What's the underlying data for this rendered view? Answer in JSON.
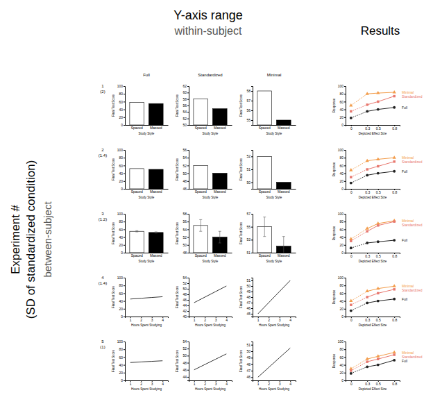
{
  "title": "Y-axis range",
  "subtitle": "within-subject",
  "results_title": "Results",
  "side_label": [
    "Experiment #",
    "(SD of standardized condition)",
    "between-subject"
  ],
  "column_headers": [
    "Full",
    "Standardized",
    "Minimal"
  ],
  "rows": [
    {
      "label": "1",
      "sd": "(2)"
    },
    {
      "label": "2",
      "sd": "(1.4)"
    },
    {
      "label": "3",
      "sd": "(1.2)"
    },
    {
      "label": "4",
      "sd": "(1.4)"
    },
    {
      "label": "5",
      "sd": "(1)"
    }
  ],
  "chart_data": [
    {
      "type": "bar",
      "xlabel": "Study Style",
      "ylabel": "Final Test Score",
      "categories": [
        "Spaced",
        "Massed"
      ],
      "values": [
        58,
        55
      ],
      "colors": [
        "#ffffff",
        "#000000"
      ],
      "ylim": [
        0,
        100
      ],
      "yticks": [
        0,
        20,
        40,
        60,
        80,
        100
      ]
    },
    {
      "type": "bar",
      "xlabel": "Study Style",
      "ylabel": "Final Test Score",
      "categories": [
        "Spaced",
        "Massed"
      ],
      "values": [
        58,
        55
      ],
      "colors": [
        "#ffffff",
        "#000000"
      ],
      "ylim": [
        50,
        62
      ],
      "yticks": [
        50,
        52,
        54,
        56,
        58,
        60,
        62
      ]
    },
    {
      "type": "bar",
      "xlabel": "Study Style",
      "ylabel": "Final Test Score",
      "categories": [
        "Spaced",
        "Massed"
      ],
      "values": [
        58,
        55
      ],
      "colors": [
        "#ffffff",
        "#000000"
      ],
      "ylim": [
        54.5,
        58.5
      ],
      "yticks": [
        55,
        56,
        57,
        58
      ]
    },
    {
      "type": "line",
      "xlabel": "Depicted Effect Size",
      "ylabel": "Response",
      "x": [
        0,
        0.3,
        0.5,
        0.8
      ],
      "xlim": [
        -0.1,
        0.9
      ],
      "xticks": [
        0,
        0.3,
        0.5,
        0.8
      ],
      "ylim": [
        0,
        100
      ],
      "yticks": [
        0,
        20,
        40,
        60,
        80,
        100
      ],
      "series": [
        {
          "name": "Minimal",
          "color": "#f39c4a",
          "marker": "triangle",
          "values": [
            50,
            80,
            82,
            84
          ]
        },
        {
          "name": "Standardized",
          "color": "#e8786f",
          "marker": "square",
          "values": [
            35,
            52,
            60,
            74
          ]
        },
        {
          "name": "Full",
          "color": "#222222",
          "marker": "circle",
          "values": [
            18,
            35,
            40,
            45
          ]
        }
      ]
    },
    {
      "type": "bar",
      "xlabel": "Study Style",
      "ylabel": "Final Test Score",
      "categories": [
        "Spaced",
        "Massed"
      ],
      "values": [
        52,
        50
      ],
      "colors": [
        "#ffffff",
        "#000000"
      ],
      "ylim": [
        0,
        100
      ],
      "yticks": [
        0,
        20,
        40,
        60,
        80,
        100
      ]
    },
    {
      "type": "bar",
      "xlabel": "Study Style",
      "ylabel": "Final Test Score",
      "categories": [
        "Spaced",
        "Massed"
      ],
      "values": [
        52,
        50
      ],
      "colors": [
        "#ffffff",
        "#000000"
      ],
      "ylim": [
        46,
        56
      ],
      "yticks": [
        46,
        48,
        50,
        52,
        54,
        56
      ]
    },
    {
      "type": "bar",
      "xlabel": "Study Style",
      "ylabel": "Final Test Score",
      "categories": [
        "Spaced",
        "Massed"
      ],
      "values": [
        52,
        50
      ],
      "colors": [
        "#ffffff",
        "#000000"
      ],
      "ylim": [
        49.5,
        52.5
      ],
      "yticks": [
        50,
        51,
        52
      ]
    },
    {
      "type": "line",
      "xlabel": "Depicted Effect Size",
      "ylabel": "Response",
      "x": [
        0,
        0.3,
        0.5,
        0.8
      ],
      "xlim": [
        -0.1,
        0.9
      ],
      "xticks": [
        0,
        0.3,
        0.5,
        0.8
      ],
      "ylim": [
        0,
        100
      ],
      "yticks": [
        0,
        20,
        40,
        60,
        80,
        100
      ],
      "series": [
        {
          "name": "Minimal",
          "color": "#f39c4a",
          "marker": "triangle",
          "values": [
            48,
            72,
            76,
            80
          ]
        },
        {
          "name": "Standardized",
          "color": "#e8786f",
          "marker": "square",
          "values": [
            30,
            50,
            58,
            70
          ]
        },
        {
          "name": "Full",
          "color": "#222222",
          "marker": "circle",
          "values": [
            15,
            35,
            40,
            45
          ]
        }
      ]
    },
    {
      "type": "bar",
      "xlabel": "Study Style",
      "ylabel": "Final Test Score",
      "categories": [
        "Spaced",
        "Massed"
      ],
      "values": [
        55,
        52
      ],
      "errors": [
        1.5,
        1.5
      ],
      "colors": [
        "#ffffff",
        "#000000"
      ],
      "ylim": [
        0,
        100
      ],
      "yticks": [
        0,
        20,
        40,
        60,
        80,
        100
      ]
    },
    {
      "type": "bar",
      "xlabel": "Study Style",
      "ylabel": "Final Test Score",
      "categories": [
        "Spaced",
        "Massed"
      ],
      "values": [
        55,
        52
      ],
      "errors": [
        1.5,
        1.5
      ],
      "colors": [
        "#ffffff",
        "#000000"
      ],
      "ylim": [
        48,
        58
      ],
      "yticks": [
        48,
        50,
        52,
        54,
        56,
        58
      ]
    },
    {
      "type": "bar",
      "xlabel": "Study Style",
      "ylabel": "Final Test Score",
      "categories": [
        "Spaced",
        "Massed"
      ],
      "values": [
        55,
        52
      ],
      "errors": [
        1.5,
        1.5
      ],
      "colors": [
        "#ffffff",
        "#000000"
      ],
      "ylim": [
        51,
        57
      ],
      "yticks": [
        51,
        53,
        55,
        57
      ]
    },
    {
      "type": "line",
      "xlabel": "Depicted Effect Size",
      "ylabel": "Response",
      "x": [
        0,
        0.3,
        0.5,
        0.8
      ],
      "xlim": [
        -0.1,
        0.9
      ],
      "xticks": [
        0,
        0.3,
        0.5,
        0.8
      ],
      "ylim": [
        0,
        100
      ],
      "yticks": [
        0,
        20,
        40,
        60,
        80,
        100
      ],
      "series": [
        {
          "name": "Minimal",
          "color": "#f39c4a",
          "marker": "triangle",
          "values": [
            35,
            62,
            75,
            82
          ]
        },
        {
          "name": "Standardized",
          "color": "#e8786f",
          "marker": "square",
          "values": [
            30,
            55,
            70,
            80
          ]
        },
        {
          "name": "Full",
          "color": "#222222",
          "marker": "circle",
          "values": [
            12,
            25,
            28,
            32
          ]
        }
      ]
    },
    {
      "type": "line",
      "xlabel": "Hours Spent Studying",
      "ylabel": "Final Test Score",
      "x": [
        1,
        2,
        3,
        4
      ],
      "values": [
        45,
        47,
        49,
        51
      ],
      "color": "#000000",
      "xlim": [
        0.5,
        4.5
      ],
      "xticks": [
        1,
        2,
        3,
        4
      ],
      "ylim": [
        0,
        100
      ],
      "yticks": [
        0,
        20,
        40,
        60,
        80,
        100
      ]
    },
    {
      "type": "line",
      "xlabel": "Hours Spent Studying",
      "ylabel": "Final Test Score",
      "x": [
        1,
        2,
        3,
        4
      ],
      "values": [
        45,
        47,
        49,
        51
      ],
      "color": "#000000",
      "xlim": [
        0.5,
        4.5
      ],
      "xticks": [
        1,
        2,
        3,
        4
      ],
      "ylim": [
        40,
        54
      ],
      "yticks": [
        40,
        42,
        44,
        46,
        48,
        50,
        52,
        54
      ]
    },
    {
      "type": "line",
      "xlabel": "Hours Spent Studying",
      "ylabel": "Final Test Score",
      "x": [
        1,
        2,
        3,
        4
      ],
      "values": [
        45,
        47,
        49,
        51
      ],
      "color": "#000000",
      "xlim": [
        0.5,
        4.5
      ],
      "xticks": [
        1,
        2,
        3,
        4
      ],
      "ylim": [
        44.5,
        51.5
      ],
      "yticks": [
        45,
        46,
        47,
        48,
        49,
        50,
        51
      ]
    },
    {
      "type": "line",
      "xlabel": "Depicted Effect Size",
      "ylabel": "Response",
      "x": [
        0,
        0.3,
        0.5,
        0.8
      ],
      "xlim": [
        -0.1,
        0.9
      ],
      "xticks": [
        0,
        0.3,
        0.5,
        0.8
      ],
      "ylim": [
        0,
        100
      ],
      "yticks": [
        0,
        20,
        40,
        60,
        80,
        100
      ],
      "series": [
        {
          "name": "Minimal",
          "color": "#f39c4a",
          "marker": "triangle",
          "values": [
            40,
            65,
            72,
            78
          ]
        },
        {
          "name": "Standardized",
          "color": "#e8786f",
          "marker": "square",
          "values": [
            30,
            50,
            60,
            70
          ]
        },
        {
          "name": "Full",
          "color": "#222222",
          "marker": "circle",
          "values": [
            15,
            35,
            40,
            45
          ]
        }
      ]
    },
    {
      "type": "line",
      "xlabel": "Hours Spent Studying",
      "ylabel": "Final Test Score",
      "x": [
        1,
        2,
        3,
        4
      ],
      "values": [
        46,
        47.5,
        49,
        50.5
      ],
      "color": "#000000",
      "xlim": [
        0.5,
        4.5
      ],
      "xticks": [
        1,
        2,
        3,
        4
      ],
      "ylim": [
        0,
        100
      ],
      "yticks": [
        0,
        20,
        40,
        60,
        80,
        100
      ]
    },
    {
      "type": "line",
      "xlabel": "Hours Spent Studying",
      "ylabel": "Final Test Score",
      "x": [
        1,
        2,
        3,
        4
      ],
      "values": [
        46,
        47.5,
        49,
        50.5
      ],
      "color": "#000000",
      "xlim": [
        0.5,
        4.5
      ],
      "xticks": [
        1,
        2,
        3,
        4
      ],
      "ylim": [
        43,
        54
      ],
      "yticks": [
        44,
        46,
        48,
        50,
        52,
        54
      ]
    },
    {
      "type": "line",
      "xlabel": "Hours Spent Studying",
      "ylabel": "Final Test Score",
      "x": [
        1,
        2,
        3,
        4
      ],
      "values": [
        46,
        47.5,
        49,
        50.5
      ],
      "color": "#000000",
      "xlim": [
        0.5,
        4.5
      ],
      "xticks": [
        1,
        2,
        3,
        4
      ],
      "ylim": [
        45.5,
        51.5
      ],
      "yticks": [
        46,
        47,
        48,
        49,
        50,
        51
      ]
    },
    {
      "type": "line",
      "xlabel": "Depicted Effect Size",
      "ylabel": "Response",
      "x": [
        0,
        0.3,
        0.5,
        0.8
      ],
      "xlim": [
        -0.1,
        0.9
      ],
      "xticks": [
        0,
        0.3,
        0.5,
        0.8
      ],
      "ylim": [
        0,
        100
      ],
      "yticks": [
        0,
        20,
        40,
        60,
        80,
        100
      ],
      "series": [
        {
          "name": "Minimal",
          "color": "#f39c4a",
          "marker": "triangle",
          "values": [
            30,
            55,
            62,
            72
          ]
        },
        {
          "name": "Standardized",
          "color": "#e8786f",
          "marker": "square",
          "values": [
            25,
            48,
            55,
            66
          ]
        },
        {
          "name": "Full",
          "color": "#222222",
          "marker": "circle",
          "values": [
            18,
            35,
            40,
            52
          ]
        }
      ]
    }
  ]
}
